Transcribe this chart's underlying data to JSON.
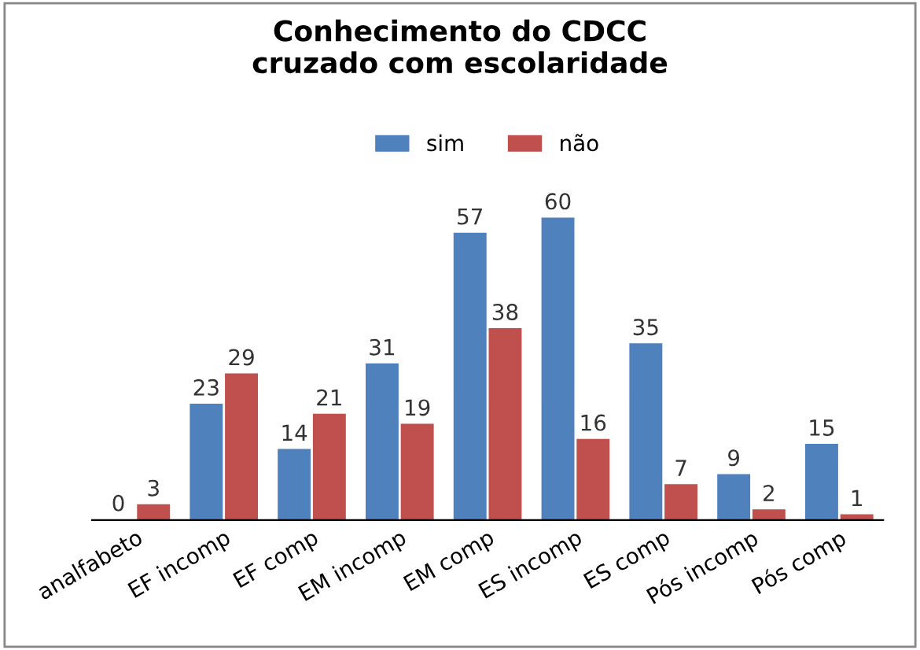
{
  "chart_data": {
    "type": "bar",
    "title": "Conhecimento do CDCC\ncruzado com escolaridade",
    "categories": [
      "analfabeto",
      "EF incomp",
      "EF comp",
      "EM incomp",
      "EM comp",
      "ES incomp",
      "ES comp",
      "Pós incomp",
      "Pós comp"
    ],
    "series": [
      {
        "name": "sim",
        "color": "#4f81bd",
        "values": [
          0,
          23,
          14,
          31,
          57,
          60,
          35,
          9,
          15
        ]
      },
      {
        "name": "não",
        "color": "#c0504d",
        "values": [
          3,
          29,
          21,
          19,
          38,
          16,
          7,
          2,
          1
        ]
      }
    ],
    "data_labels": true,
    "legend": "top",
    "grid": false
  }
}
